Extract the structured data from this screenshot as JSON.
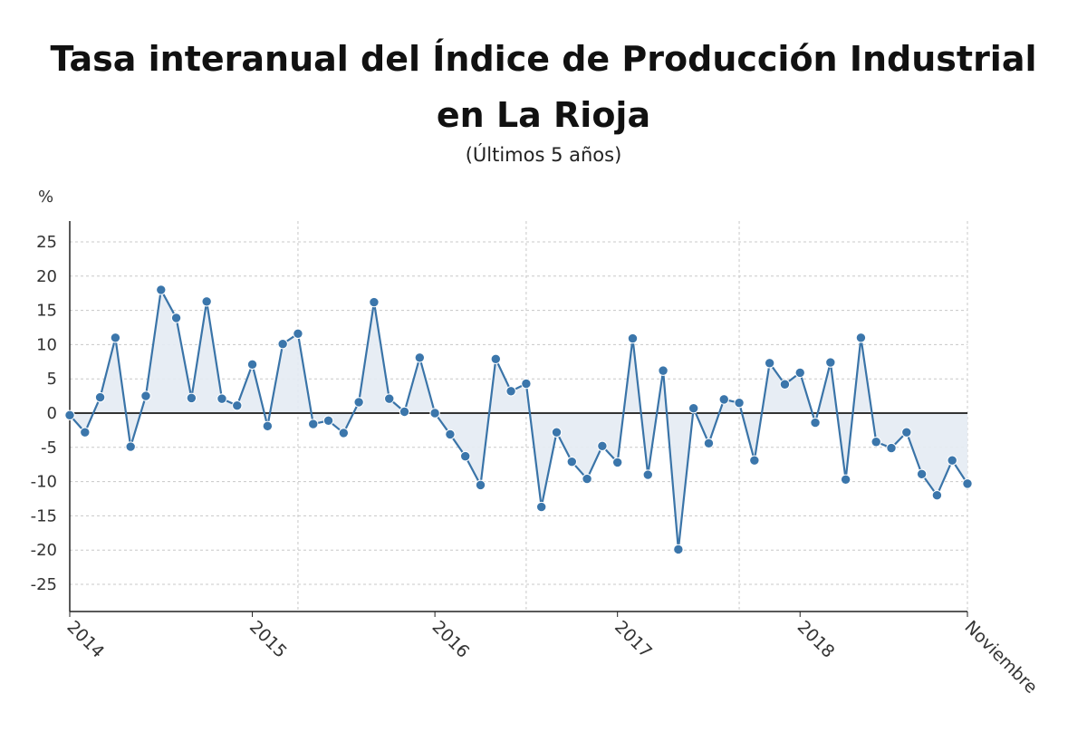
{
  "chart_data": {
    "type": "line",
    "title": "Tasa interanual del Índice de Producción Industrial en La Rioja",
    "subtitle": "(Últimos 5 años)",
    "ylabel": "%",
    "xlabel": "",
    "ylim": [
      -30,
      28
    ],
    "yticks": [
      25,
      20,
      15,
      10,
      5,
      0,
      -5,
      -10,
      -15,
      -20,
      -25
    ],
    "x_tick_labels": [
      {
        "label": "2014",
        "index": 0
      },
      {
        "label": "2015",
        "index": 12
      },
      {
        "label": "2016",
        "index": 24
      },
      {
        "label": "2017",
        "index": 36
      },
      {
        "label": "2018",
        "index": 48
      },
      {
        "label": "Noviembre",
        "index": 59
      }
    ],
    "vertical_gridlines_at_index": [
      15,
      30,
      44,
      59
    ],
    "grid": true,
    "zero_line": true,
    "area_fill_to_zero": true,
    "colors": {
      "line": "#3a74a8",
      "marker": "#3b76ab",
      "fill": "#e4ebf3",
      "zero": "#333333",
      "grid": "#c8c8c8"
    },
    "series": [
      {
        "values": [
          -0.3,
          -2.8,
          2.3,
          11.0,
          -4.9,
          2.5,
          18.0,
          13.9,
          2.2,
          16.3,
          2.1,
          1.1,
          7.1,
          -1.9,
          10.1,
          11.6,
          -1.6,
          -1.1,
          -2.9,
          1.6,
          16.2,
          2.1,
          0.2,
          8.1,
          0.0,
          -3.1,
          -6.3,
          -10.5,
          7.9,
          3.2,
          4.3,
          -13.7,
          -2.8,
          -7.1,
          -9.6,
          -4.8,
          -7.2,
          10.9,
          -9.0,
          6.2,
          -19.9,
          0.7,
          -4.4,
          2.0,
          1.5,
          -6.9,
          7.3,
          4.2,
          5.9,
          -1.4,
          7.4,
          -9.7,
          11.0,
          -4.2,
          -5.1,
          -2.8,
          -8.9,
          -12.0,
          -6.9,
          -10.3
        ]
      }
    ]
  }
}
